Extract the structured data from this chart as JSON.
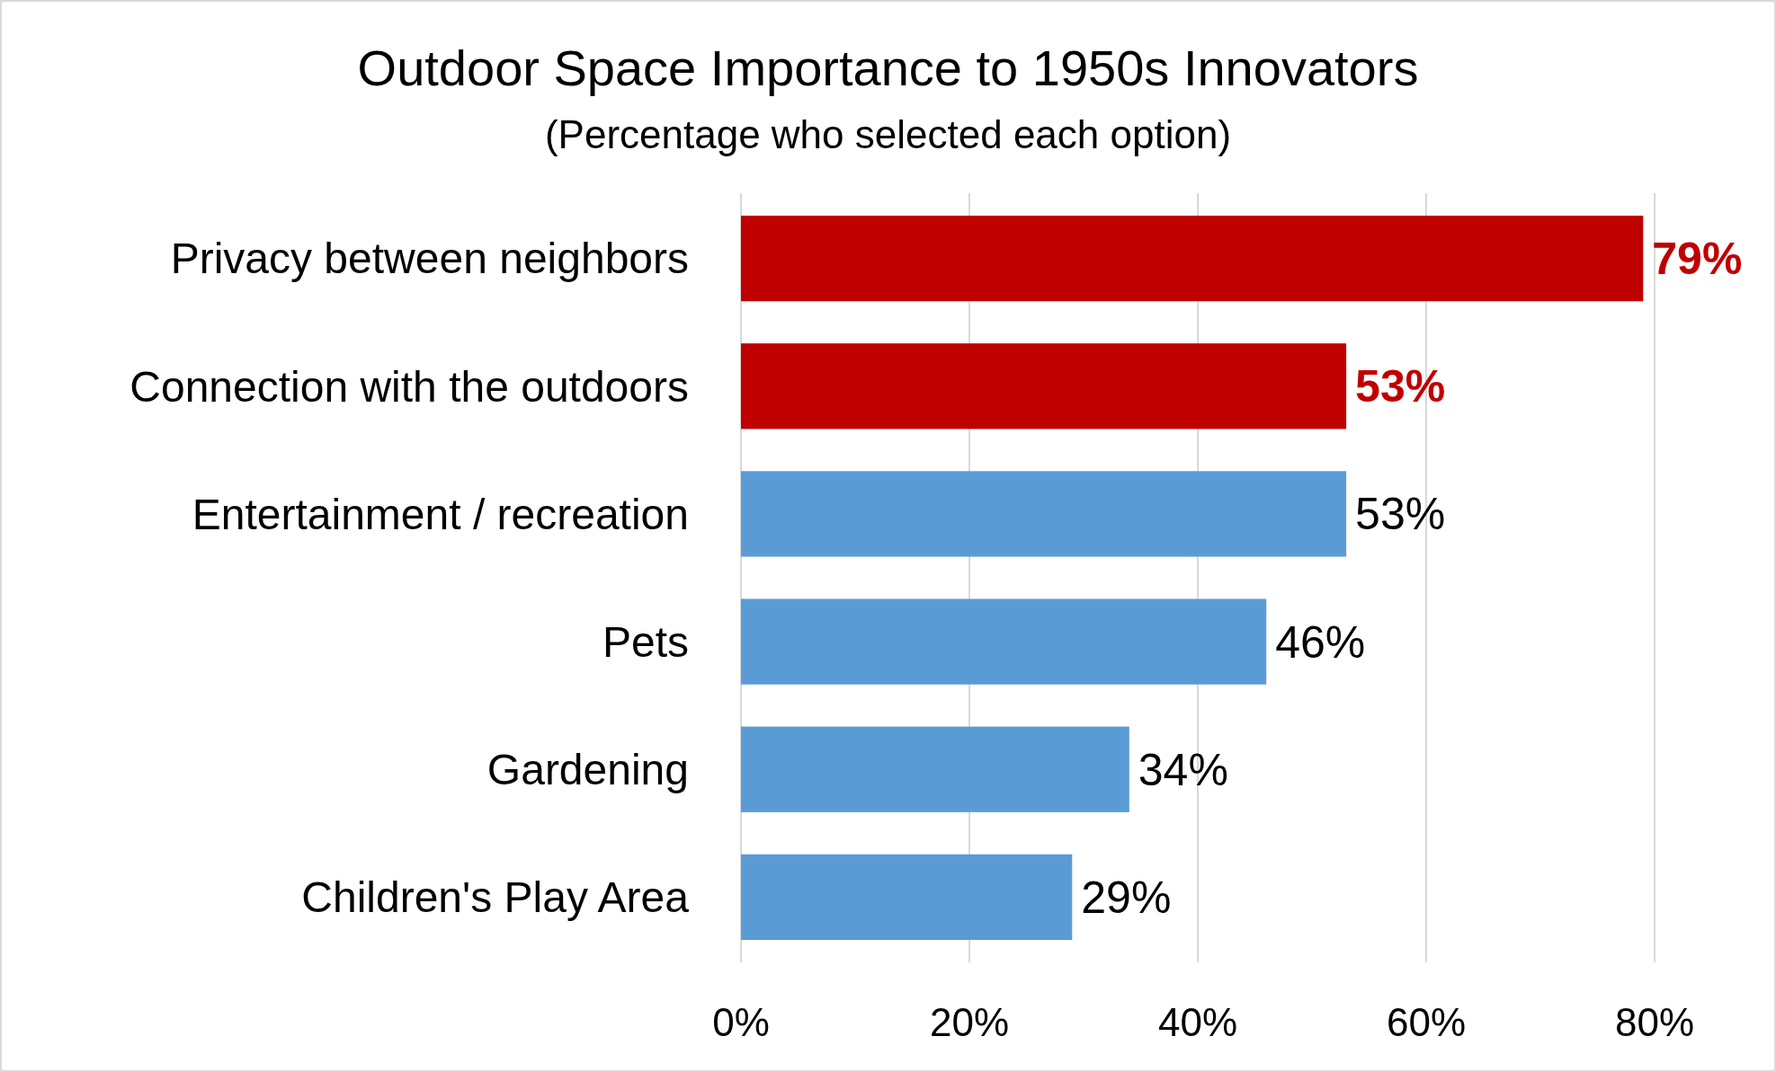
{
  "chart_data": {
    "type": "bar",
    "orientation": "horizontal",
    "title": "Outdoor Space Importance to 1950s Innovators",
    "subtitle": "(Percentage who selected each option)",
    "categories": [
      "Privacy between neighbors",
      "Connection with the outdoors",
      "Entertainment / recreation",
      "Pets",
      "Gardening",
      "Children's Play Area"
    ],
    "values": [
      79,
      53,
      53,
      46,
      34,
      29
    ],
    "colors": [
      "#c00000",
      "#c00000",
      "#5b9bd5",
      "#5b9bd5",
      "#5b9bd5",
      "#5b9bd5"
    ],
    "value_labels": [
      "79%",
      "53%",
      "53%",
      "46%",
      "34%",
      "29%"
    ],
    "xlim": [
      0,
      80
    ],
    "xticks": [
      {
        "value": 0,
        "label": "0%"
      },
      {
        "value": 20,
        "label": "20%"
      },
      {
        "value": 40,
        "label": "40%"
      },
      {
        "value": 60,
        "label": "60%"
      },
      {
        "value": 80,
        "label": "80%"
      }
    ],
    "grid": "x"
  }
}
